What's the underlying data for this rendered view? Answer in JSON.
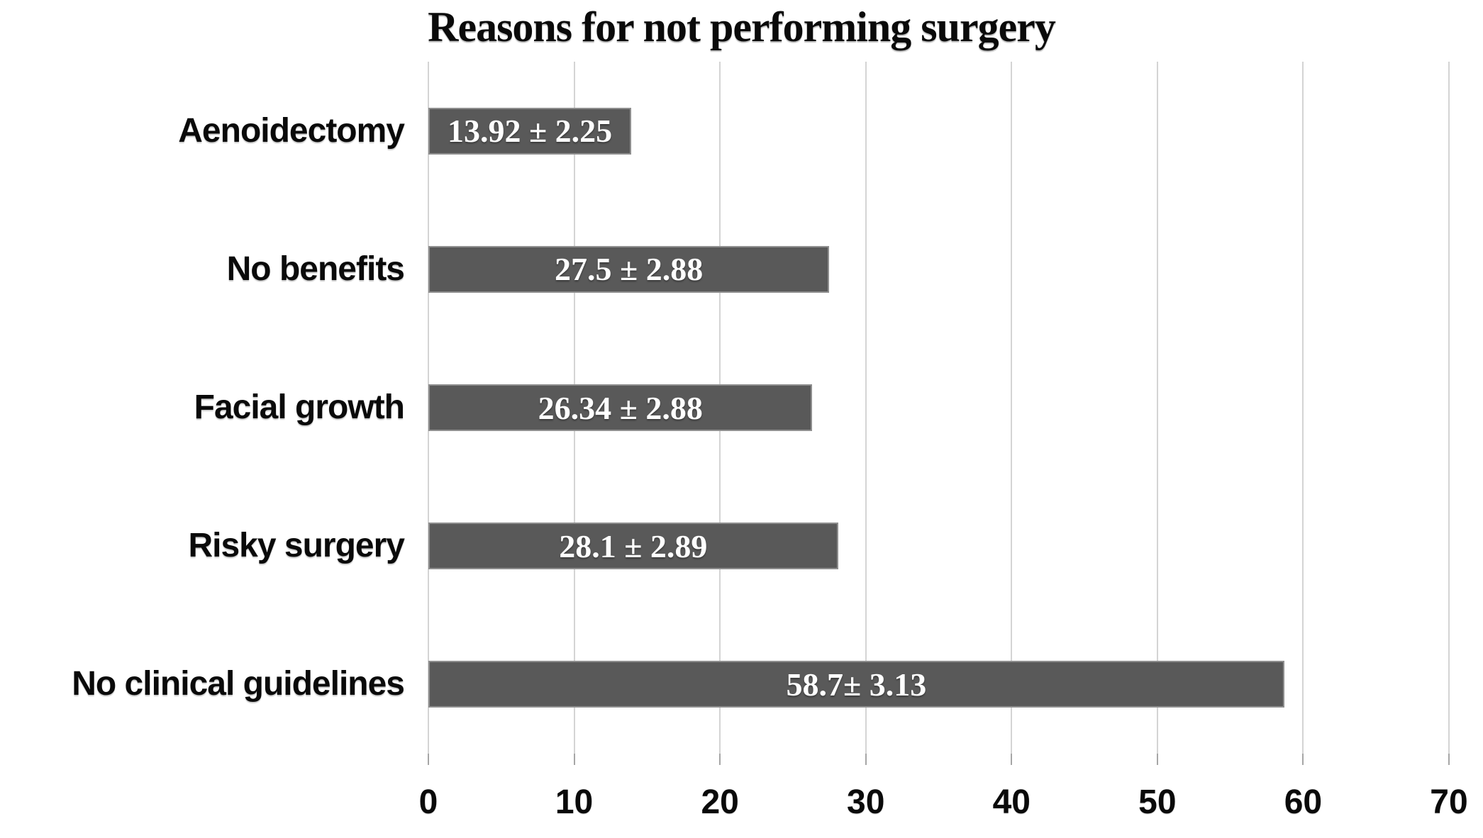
{
  "chart_data": {
    "type": "bar",
    "orientation": "horizontal",
    "title": "Reasons for not performing surgery",
    "categories": [
      "Aenoidectomy",
      "No benefits",
      "Facial growth",
      "Risky surgery",
      "No clinical guidelines"
    ],
    "values": [
      13.92,
      27.5,
      26.34,
      28.1,
      58.7
    ],
    "errors": [
      2.25,
      2.88,
      2.88,
      2.89,
      3.13
    ],
    "bar_labels": [
      "13.92 ± 2.25",
      "27.5 ± 2.88",
      "26.34 ± 2.88",
      "28.1 ± 2.89",
      "58.7± 3.13"
    ],
    "xlabel": "",
    "ylabel": "",
    "xlim": [
      0,
      70
    ],
    "xticks": [
      0,
      10,
      20,
      30,
      40,
      50,
      60,
      70
    ],
    "xtick_labels": [
      "0",
      "10",
      "20",
      "30",
      "40",
      "50",
      "60",
      "70"
    ],
    "grid": true,
    "legend": false,
    "colors": {
      "bar_fill": "#595959",
      "bar_border": "#8f8f8f",
      "bar_text": "#ffffff",
      "gridline": "#d4d4d4",
      "tick": "#a6a6a6",
      "text": "#0a0a0a",
      "background": "#ffffff"
    }
  }
}
